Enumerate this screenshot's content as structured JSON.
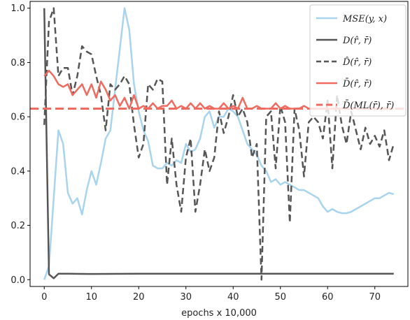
{
  "chart_data": {
    "type": "line",
    "xlabel": "epochs x 10,000",
    "ylabel": "",
    "xlim": [
      -3,
      77
    ],
    "ylim": [
      -0.025,
      1.025
    ],
    "xticks": [
      "0",
      "10",
      "20",
      "30",
      "40",
      "50",
      "60",
      "70"
    ],
    "yticks": [
      "0.0",
      "0.2",
      "0.4",
      "0.6",
      "0.8",
      "1.0"
    ],
    "grid": false,
    "legend": "top-right",
    "series": [
      {
        "name": "MSE(y, x)",
        "color": "#a8d4ee",
        "style": "solid",
        "x": [
          0,
          1,
          2,
          3,
          4,
          5,
          6,
          7,
          8,
          9,
          10,
          11,
          12,
          13,
          14,
          15,
          16,
          17,
          18,
          19,
          20,
          21,
          22,
          23,
          24,
          25,
          26,
          27,
          28,
          29,
          30,
          31,
          32,
          33,
          34,
          35,
          36,
          37,
          38,
          39,
          40,
          41,
          42,
          43,
          44,
          45,
          46,
          47,
          48,
          49,
          50,
          51,
          52,
          53,
          54,
          55,
          56,
          57,
          58,
          59,
          60,
          61,
          62,
          63,
          64,
          65,
          66,
          67,
          68,
          69,
          70,
          71,
          72,
          73,
          74
        ],
        "values": [
          0.0,
          0.05,
          0.3,
          0.55,
          0.5,
          0.32,
          0.28,
          0.3,
          0.24,
          0.33,
          0.4,
          0.35,
          0.43,
          0.52,
          0.55,
          0.7,
          0.85,
          1.0,
          0.92,
          0.72,
          0.62,
          0.55,
          0.51,
          0.42,
          0.41,
          0.41,
          0.43,
          0.42,
          0.44,
          0.43,
          0.5,
          0.47,
          0.48,
          0.52,
          0.6,
          0.62,
          0.56,
          0.6,
          0.6,
          0.63,
          0.62,
          0.6,
          0.55,
          0.5,
          0.48,
          0.46,
          0.42,
          0.4,
          0.36,
          0.37,
          0.35,
          0.36,
          0.35,
          0.34,
          0.33,
          0.33,
          0.32,
          0.31,
          0.3,
          0.27,
          0.25,
          0.26,
          0.25,
          0.245,
          0.245,
          0.25,
          0.26,
          0.27,
          0.28,
          0.29,
          0.3,
          0.3,
          0.31,
          0.32,
          0.315
        ]
      },
      {
        "name": "D(r̂, r̄)",
        "color": "#555555",
        "style": "solid",
        "x": [
          0,
          1,
          2,
          3,
          5,
          10,
          20,
          30,
          40,
          46,
          50,
          60,
          70,
          74
        ],
        "values": [
          1.0,
          0.02,
          0.005,
          0.022,
          0.022,
          0.021,
          0.022,
          0.022,
          0.022,
          0.022,
          0.022,
          0.022,
          0.022,
          0.022
        ]
      },
      {
        "name": "D̂(r̂, r̄)",
        "color": "#555555",
        "style": "dashed",
        "x": [
          0,
          1,
          2,
          3,
          4,
          5,
          6,
          7,
          8,
          9,
          10,
          11,
          12,
          13,
          14,
          15,
          16,
          17,
          18,
          19,
          20,
          21,
          22,
          23,
          24,
          25,
          26,
          27,
          28,
          29,
          30,
          31,
          32,
          33,
          34,
          35,
          36,
          37,
          38,
          39,
          40,
          41,
          42,
          43,
          44,
          45,
          46,
          47,
          48,
          49,
          50,
          51,
          52,
          53,
          54,
          55,
          56,
          57,
          58,
          59,
          60,
          61,
          62,
          63,
          64,
          65,
          66,
          67,
          68,
          69,
          70,
          71,
          72,
          73,
          74
        ],
        "values": [
          0.57,
          0.95,
          1.0,
          0.75,
          0.78,
          0.78,
          0.68,
          0.75,
          0.86,
          0.84,
          0.83,
          0.75,
          0.68,
          0.55,
          0.72,
          0.7,
          0.72,
          0.75,
          0.72,
          0.57,
          0.45,
          0.5,
          0.72,
          0.7,
          0.74,
          0.73,
          0.35,
          0.52,
          0.35,
          0.25,
          0.45,
          0.52,
          0.25,
          0.35,
          0.48,
          0.4,
          0.45,
          0.62,
          0.54,
          0.6,
          0.68,
          0.6,
          0.63,
          0.58,
          0.45,
          0.5,
          0.0,
          0.6,
          0.62,
          0.41,
          0.64,
          0.58,
          0.21,
          0.63,
          0.55,
          0.38,
          0.58,
          0.6,
          0.58,
          0.52,
          0.66,
          0.41,
          0.68,
          0.57,
          0.5,
          0.62,
          0.55,
          0.48,
          0.56,
          0.5,
          0.53,
          0.49,
          0.55,
          0.44,
          0.5
        ]
      },
      {
        "name": "D̄(r̂, r̄)",
        "color": "#f06a60",
        "style": "solid",
        "x": [
          0,
          1,
          2,
          3,
          4,
          5,
          6,
          7,
          8,
          9,
          10,
          11,
          12,
          13,
          14,
          15,
          16,
          17,
          18,
          19,
          20,
          21,
          22,
          23,
          24,
          25,
          26,
          27,
          28,
          29,
          30,
          31,
          32,
          33,
          34,
          35,
          36,
          37,
          38,
          39,
          40,
          41,
          42,
          43,
          44,
          45,
          46,
          47,
          48,
          49,
          50,
          51,
          52,
          53,
          54,
          55,
          56,
          57,
          58,
          59,
          60,
          61,
          62,
          63,
          64,
          65,
          66,
          67,
          68,
          69,
          70,
          71,
          72,
          73,
          74
        ],
        "values": [
          0.75,
          0.77,
          0.75,
          0.72,
          0.71,
          0.72,
          0.68,
          0.7,
          0.72,
          0.68,
          0.72,
          0.67,
          0.73,
          0.7,
          0.66,
          0.68,
          0.64,
          0.67,
          0.63,
          0.68,
          0.63,
          0.64,
          0.63,
          0.65,
          0.63,
          0.64,
          0.64,
          0.66,
          0.63,
          0.64,
          0.63,
          0.65,
          0.63,
          0.65,
          0.63,
          0.64,
          0.63,
          0.63,
          0.65,
          0.63,
          0.64,
          0.63,
          0.67,
          0.63,
          0.63,
          0.64,
          0.63,
          0.63,
          0.63,
          0.65,
          0.63,
          0.64,
          0.63,
          0.63,
          0.63,
          0.64,
          0.63,
          0.63,
          0.63,
          0.63,
          0.63,
          0.63,
          0.63,
          0.63,
          0.63,
          0.63,
          0.63,
          0.63,
          0.63,
          0.63,
          0.63,
          0.63,
          0.63,
          0.63,
          0.63
        ]
      },
      {
        "name": "D̄(ML(r̄), r̄)",
        "color": "#f06a60",
        "style": "dashed",
        "x": [
          -3,
          77
        ],
        "values": [
          0.63,
          0.63
        ]
      }
    ]
  }
}
